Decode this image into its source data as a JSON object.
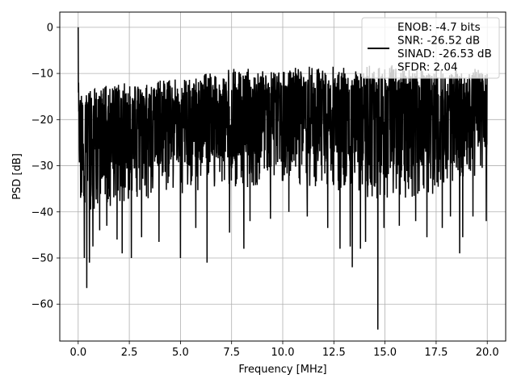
{
  "chart_data": {
    "type": "line",
    "title": "",
    "xlabel": "Frequency [MHz]",
    "ylabel": "PSD [dB]",
    "xlim": [
      -0.9,
      20.9
    ],
    "ylim": [
      -68.0,
      3.3
    ],
    "xticks": [
      0.0,
      2.5,
      5.0,
      7.5,
      10.0,
      12.5,
      15.0,
      17.5,
      20.0
    ],
    "xtick_labels": [
      "0.0",
      "2.5",
      "5.0",
      "7.5",
      "10.0",
      "12.5",
      "15.0",
      "17.5",
      "20.0"
    ],
    "yticks": [
      0,
      -10,
      -20,
      -30,
      -40,
      -50,
      -60
    ],
    "ytick_labels": [
      "0",
      "−10",
      "−20",
      "−30",
      "−40",
      "−50",
      "−60"
    ],
    "grid": true,
    "legend_position": "top-right",
    "legend_entries": [
      "ENOB: -4.7 bits",
      "SNR: -26.52 dB",
      "SINAD: -26.53 dB",
      "SFDR: 2.04"
    ],
    "series": [
      {
        "color": "#000000",
        "description": "Dense noise spectrum, approx 2000 points from 0 to 20 MHz; upper envelope rises from about -14 dB to about -8 dB, lower envelope mostly -30 to -45 dB with deep dips",
        "upper_envelope": [
          [
            0.0,
            -13
          ],
          [
            2.5,
            -12
          ],
          [
            5.0,
            -11
          ],
          [
            7.5,
            -9
          ],
          [
            10.0,
            -9
          ],
          [
            12.5,
            -8
          ],
          [
            15.0,
            -8
          ],
          [
            17.5,
            -9
          ],
          [
            20.0,
            -9
          ]
        ],
        "lower_envelope": [
          [
            0.0,
            -40
          ],
          [
            2.5,
            -38
          ],
          [
            5.0,
            -36
          ],
          [
            7.5,
            -35
          ],
          [
            10.0,
            -34
          ],
          [
            12.5,
            -36
          ],
          [
            15.0,
            -38
          ],
          [
            17.5,
            -36
          ],
          [
            20.0,
            -31
          ]
        ],
        "peaks": [
          [
            0.0,
            0.0
          ],
          [
            0.02,
            -12.0
          ]
        ],
        "dips": [
          [
            0.42,
            -56.5
          ],
          [
            0.3,
            -50.0
          ],
          [
            0.55,
            -51.0
          ],
          [
            0.72,
            -47.5
          ],
          [
            1.05,
            -44.0
          ],
          [
            1.4,
            -43.0
          ],
          [
            1.9,
            -46.0
          ],
          [
            2.15,
            -49.0
          ],
          [
            2.6,
            -50.0
          ],
          [
            3.1,
            -45.5
          ],
          [
            3.95,
            -46.5
          ],
          [
            5.0,
            -50.0
          ],
          [
            5.75,
            -43.5
          ],
          [
            6.3,
            -51.0
          ],
          [
            7.4,
            -44.5
          ],
          [
            8.1,
            -48.0
          ],
          [
            8.4,
            -42.0
          ],
          [
            9.4,
            -41.5
          ],
          [
            10.3,
            -40.0
          ],
          [
            11.2,
            -41.0
          ],
          [
            12.2,
            -43.5
          ],
          [
            12.8,
            -48.0
          ],
          [
            13.3,
            -47.5
          ],
          [
            13.4,
            -52.0
          ],
          [
            13.8,
            -48.0
          ],
          [
            14.05,
            -46.5
          ],
          [
            14.65,
            -65.5
          ],
          [
            14.95,
            -43.5
          ],
          [
            15.7,
            -43.0
          ],
          [
            16.5,
            -42.0
          ],
          [
            17.05,
            -45.5
          ],
          [
            17.8,
            -43.5
          ],
          [
            18.2,
            -41.0
          ],
          [
            18.65,
            -49.0
          ],
          [
            18.8,
            -45.5
          ],
          [
            19.3,
            -41.0
          ],
          [
            19.95,
            -42.0
          ]
        ]
      }
    ]
  }
}
